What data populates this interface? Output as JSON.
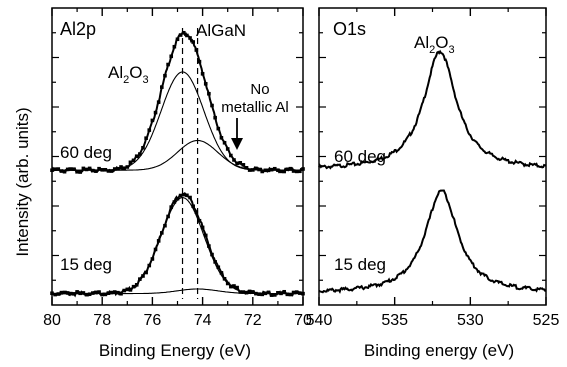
{
  "ylabel": "Intensity (arb. units)",
  "chart_data": [
    {
      "type": "line",
      "title": "Al2p",
      "xlabel": "Binding Energy (eV)",
      "ylabel": "Intensity (arb. units)",
      "xlim": [
        80,
        70
      ],
      "xticks": [
        80,
        78,
        76,
        74,
        72,
        70
      ],
      "x_reversed": true,
      "ylim": [
        0,
        1.3
      ],
      "dashed_lines_x": [
        74.8,
        74.2
      ],
      "annotations": {
        "al2o3_main": "Al",
        "al2o3_sub2": "2",
        "al2o3_o": "O",
        "al2o3_sub3": "3",
        "algan": "AlGaN",
        "no_metallic_line1": "No",
        "no_metallic_line2": "metallic Al"
      },
      "series": [
        {
          "label": "60 deg",
          "baseline": 0.59,
          "measured": {
            "peaks": [
              {
                "center": 74.85,
                "amplitude": 0.5,
                "sigma": 0.85
              },
              {
                "center": 74.2,
                "amplitude": 0.13,
                "sigma": 0.8
              }
            ]
          },
          "fit_components": [
            {
              "center": 74.8,
              "amplitude": 0.43,
              "sigma": 0.85
            },
            {
              "center": 74.2,
              "amplitude": 0.13,
              "sigma": 0.8
            }
          ]
        },
        {
          "label": "15 deg",
          "baseline": 0.05,
          "measured": {
            "peaks": [
              {
                "center": 74.8,
                "amplitude": 0.42,
                "sigma": 0.85
              },
              {
                "center": 74.2,
                "amplitude": 0.02,
                "sigma": 0.8
              }
            ]
          },
          "fit_components": [
            {
              "center": 74.8,
              "amplitude": 0.42,
              "sigma": 0.85
            },
            {
              "center": 74.2,
              "amplitude": 0.02,
              "sigma": 0.8
            }
          ]
        }
      ]
    },
    {
      "type": "line",
      "title": "O1s",
      "xlabel": "Binding energy (eV)",
      "xlim": [
        540,
        525
      ],
      "xticks": [
        540,
        535,
        530,
        525
      ],
      "x_reversed": true,
      "ylim": [
        0,
        1.3
      ],
      "annotations": {
        "al2o3_main": "Al",
        "al2o3_sub2": "2",
        "al2o3_o": "O",
        "al2o3_sub3": "3"
      },
      "series": [
        {
          "label": "60 deg",
          "baseline": 0.59,
          "peak": {
            "center": 532.0,
            "amplitude": 0.52,
            "width": 1.3
          }
        },
        {
          "label": "15 deg",
          "baseline": 0.05,
          "peak": {
            "center": 531.9,
            "amplitude": 0.45,
            "width": 1.3
          }
        }
      ]
    }
  ]
}
